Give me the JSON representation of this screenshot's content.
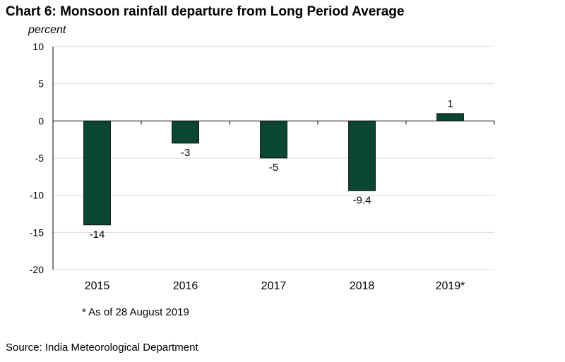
{
  "title": "Chart 6: Monsoon rainfall departure from Long Period Average",
  "unit_label": "percent",
  "footnote": "* As of 28 August 2019",
  "source": "Source: India Meteorological Department",
  "colors": {
    "bar": "#0b4631",
    "grid": "#d9d9d9",
    "axis": "#000000"
  },
  "chart_data": {
    "type": "bar",
    "categories": [
      "2015",
      "2016",
      "2017",
      "2018",
      "2019*"
    ],
    "values": [
      -14,
      -3,
      -5,
      -9.4,
      1
    ],
    "data_labels": [
      "-14",
      "-3",
      "-5",
      "-9.4",
      "1"
    ],
    "ylabel": "percent",
    "ylim": [
      -20,
      10
    ],
    "yticks": [
      10,
      5,
      0,
      -5,
      -10,
      -15,
      -20
    ],
    "grid": true
  }
}
